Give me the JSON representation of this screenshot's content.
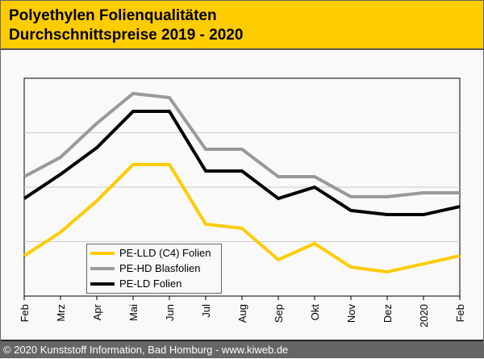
{
  "header": {
    "title_line1": "Polyethylen Folienqualitäten",
    "title_line2": "Durchschnittspreise 2019 - 2020"
  },
  "footer": {
    "text": "© 2020 Kunststoff Information, Bad Homburg - www.kiweb.de"
  },
  "chart_data": {
    "type": "line",
    "title": "Polyethylen Folienqualitäten Durchschnittspreise 2019 - 2020",
    "xlabel": "",
    "ylabel": "",
    "categories": [
      "Feb",
      "Mrz",
      "Apr",
      "Mai",
      "Jun",
      "Jul",
      "Aug",
      "Sep",
      "Okt",
      "Nov",
      "Dez",
      "2020",
      "Feb"
    ],
    "ylim": [
      0,
      100
    ],
    "yticks": [
      25,
      50,
      75
    ],
    "grid": true,
    "legend_placement": "bottom-left",
    "series": [
      {
        "name": "PE-LLD (C4) Folien",
        "color": "#ffcc00",
        "values": [
          18.5,
          29.3,
          43.7,
          60.4,
          60.4,
          33.0,
          31.1,
          16.7,
          24.1,
          13.3,
          11.1,
          14.8,
          18.5
        ]
      },
      {
        "name": "PE-HD Blasfolien",
        "color": "#999999",
        "values": [
          54.8,
          63.7,
          79.3,
          93.0,
          91.1,
          67.4,
          67.4,
          54.8,
          54.8,
          45.6,
          45.6,
          47.4,
          47.4
        ]
      },
      {
        "name": "PE-LD Folien",
        "color": "#000000",
        "values": [
          44.8,
          55.9,
          68.1,
          84.8,
          84.8,
          57.4,
          57.4,
          44.8,
          50.0,
          39.3,
          37.4,
          37.4,
          41.1
        ]
      }
    ]
  }
}
